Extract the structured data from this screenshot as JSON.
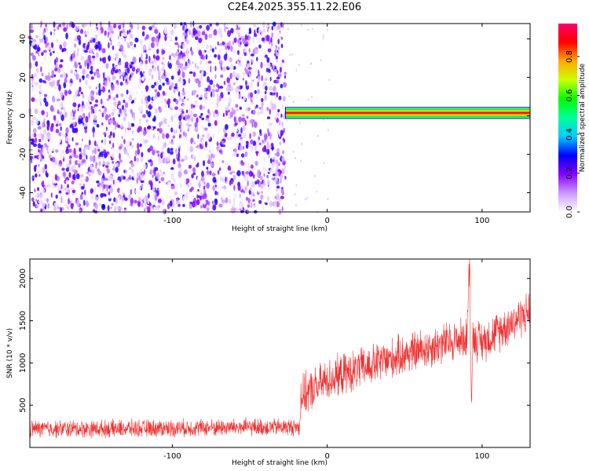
{
  "title": "C2E4.2025.355.11.22.E06",
  "chart_data": [
    {
      "type": "heatmap",
      "xlabel": "Height of straight line (km)",
      "ylabel": "Frequency (Hz)",
      "xlim": [
        -192,
        131
      ],
      "ylim": [
        -50,
        48
      ],
      "xticks": [
        -100,
        0,
        100
      ],
      "yticks": [
        -40,
        -20,
        0,
        20,
        40
      ],
      "colorbar": {
        "label": "Normalized spectral amplitude",
        "range": [
          0.0,
          0.97
        ],
        "ticks": [
          "0.0",
          "0.2",
          "0.4",
          "0.6",
          "0.8"
        ],
        "colors": [
          "#ffffff",
          "#cc99ff",
          "#8800ff",
          "#0000ff",
          "#00ccff",
          "#00ff99",
          "#00ff00",
          "#ccff00",
          "#ffaa00",
          "#ff0000",
          "#ff0066"
        ]
      },
      "regions": [
        {
          "name": "noise",
          "x_range": [
            -192,
            -27
          ],
          "y_range": [
            -50,
            48
          ],
          "amplitude_range": [
            0.0,
            0.3
          ]
        },
        {
          "name": "signal band",
          "x_range": [
            -27,
            131
          ],
          "center_frequency": 1.5,
          "half_width": 2.5,
          "peak_amplitude": 0.95
        }
      ]
    },
    {
      "type": "line",
      "xlabel": "Height of straight line (km)",
      "ylabel": "SNR (10 * v/v)",
      "xlim": [
        -192,
        131
      ],
      "ylim": [
        0,
        2230
      ],
      "xticks": [
        -100,
        0,
        100
      ],
      "yticks": [
        500,
        1000,
        1500,
        2000
      ],
      "color": "#ee3333",
      "series_trend": {
        "x": [
          -192,
          -150,
          -100,
          -50,
          -18,
          -17,
          0,
          25,
          50,
          75,
          90,
          92,
          93,
          94,
          100,
          131
        ],
        "y": [
          220,
          220,
          230,
          240,
          240,
          600,
          800,
          950,
          1100,
          1230,
          1300,
          2230,
          480,
          1300,
          1250,
          1620
        ]
      }
    }
  ]
}
